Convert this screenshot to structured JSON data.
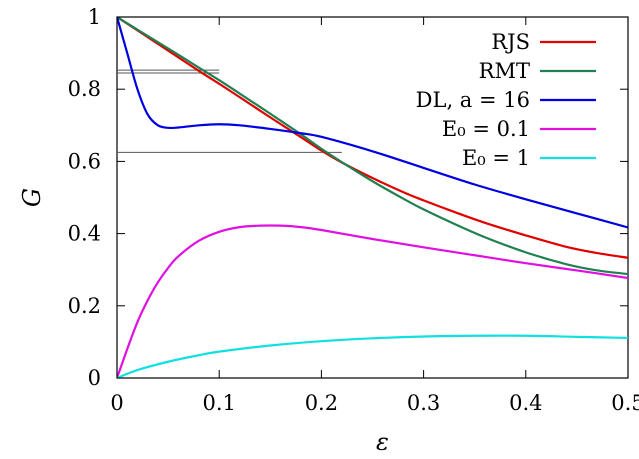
{
  "chart_data": {
    "type": "line",
    "title": "",
    "xlabel": "ε",
    "ylabel": "G",
    "xlim": [
      0,
      0.5
    ],
    "ylim": [
      0,
      1
    ],
    "x_ticks": [
      0,
      0.1,
      0.2,
      0.3,
      0.4,
      0.5
    ],
    "y_ticks": [
      0,
      0.2,
      0.4,
      0.6,
      0.8,
      1
    ],
    "x_tick_labels": [
      "0",
      "0.1",
      "0.2",
      "0.3",
      "0.4",
      "0.5"
    ],
    "y_tick_labels": [
      "0",
      "0.2",
      "0.4",
      "0.6",
      "0.8",
      "1"
    ],
    "grid": false,
    "legend_position": "top-right",
    "series": [
      {
        "name": "RJS",
        "color": "#e00000",
        "x": [
          0,
          0.02,
          0.05,
          0.08,
          0.1,
          0.12,
          0.15,
          0.18,
          0.2,
          0.22,
          0.25,
          0.28,
          0.3,
          0.33,
          0.36,
          0.4,
          0.44,
          0.47,
          0.5
        ],
        "y": [
          1,
          0.963,
          0.907,
          0.851,
          0.815,
          0.778,
          0.722,
          0.667,
          0.63,
          0.597,
          0.554,
          0.515,
          0.492,
          0.46,
          0.43,
          0.395,
          0.363,
          0.346,
          0.333
        ]
      },
      {
        "name": "RMT",
        "color": "#208050",
        "x": [
          0,
          0.02,
          0.05,
          0.08,
          0.1,
          0.12,
          0.15,
          0.18,
          0.2,
          0.22,
          0.25,
          0.28,
          0.3,
          0.33,
          0.36,
          0.4,
          0.44,
          0.47,
          0.5
        ],
        "y": [
          1,
          0.965,
          0.913,
          0.86,
          0.825,
          0.788,
          0.732,
          0.675,
          0.635,
          0.598,
          0.545,
          0.497,
          0.467,
          0.427,
          0.39,
          0.348,
          0.315,
          0.298,
          0.288
        ]
      },
      {
        "name": "DL, a = 16",
        "color": "#0000e0",
        "x": [
          0,
          0.01,
          0.02,
          0.03,
          0.04,
          0.05,
          0.06,
          0.08,
          0.1,
          0.12,
          0.15,
          0.18,
          0.2,
          0.25,
          0.3,
          0.35,
          0.4,
          0.45,
          0.5
        ],
        "y": [
          1,
          0.9,
          0.8,
          0.73,
          0.7,
          0.693,
          0.694,
          0.7,
          0.703,
          0.7,
          0.69,
          0.678,
          0.668,
          0.628,
          0.582,
          0.536,
          0.495,
          0.456,
          0.417
        ]
      },
      {
        "name": "E₀ = 0.1",
        "color": "#e010e0",
        "x": [
          0,
          0.01,
          0.02,
          0.03,
          0.04,
          0.05,
          0.06,
          0.08,
          0.1,
          0.12,
          0.14,
          0.16,
          0.18,
          0.2,
          0.25,
          0.3,
          0.35,
          0.4,
          0.45,
          0.5
        ],
        "y": [
          0,
          0.08,
          0.155,
          0.215,
          0.265,
          0.305,
          0.337,
          0.38,
          0.405,
          0.418,
          0.422,
          0.422,
          0.418,
          0.41,
          0.385,
          0.362,
          0.34,
          0.318,
          0.298,
          0.277
        ]
      },
      {
        "name": "E₀ = 1",
        "color": "#10e0e0",
        "x": [
          0,
          0.02,
          0.05,
          0.08,
          0.1,
          0.15,
          0.2,
          0.25,
          0.3,
          0.35,
          0.4,
          0.45,
          0.5
        ],
        "y": [
          0,
          0.022,
          0.045,
          0.063,
          0.073,
          0.09,
          0.102,
          0.11,
          0.115,
          0.117,
          0.117,
          0.114,
          0.111
        ]
      }
    ],
    "reference_lines": [
      {
        "x": [
          0,
          0.1
        ],
        "y": [
          0.853,
          0.853
        ]
      },
      {
        "x": [
          0,
          0.1
        ],
        "y": [
          0.845,
          0.845
        ]
      },
      {
        "x": [
          0,
          0.22
        ],
        "y": [
          0.625,
          0.625
        ]
      }
    ]
  }
}
